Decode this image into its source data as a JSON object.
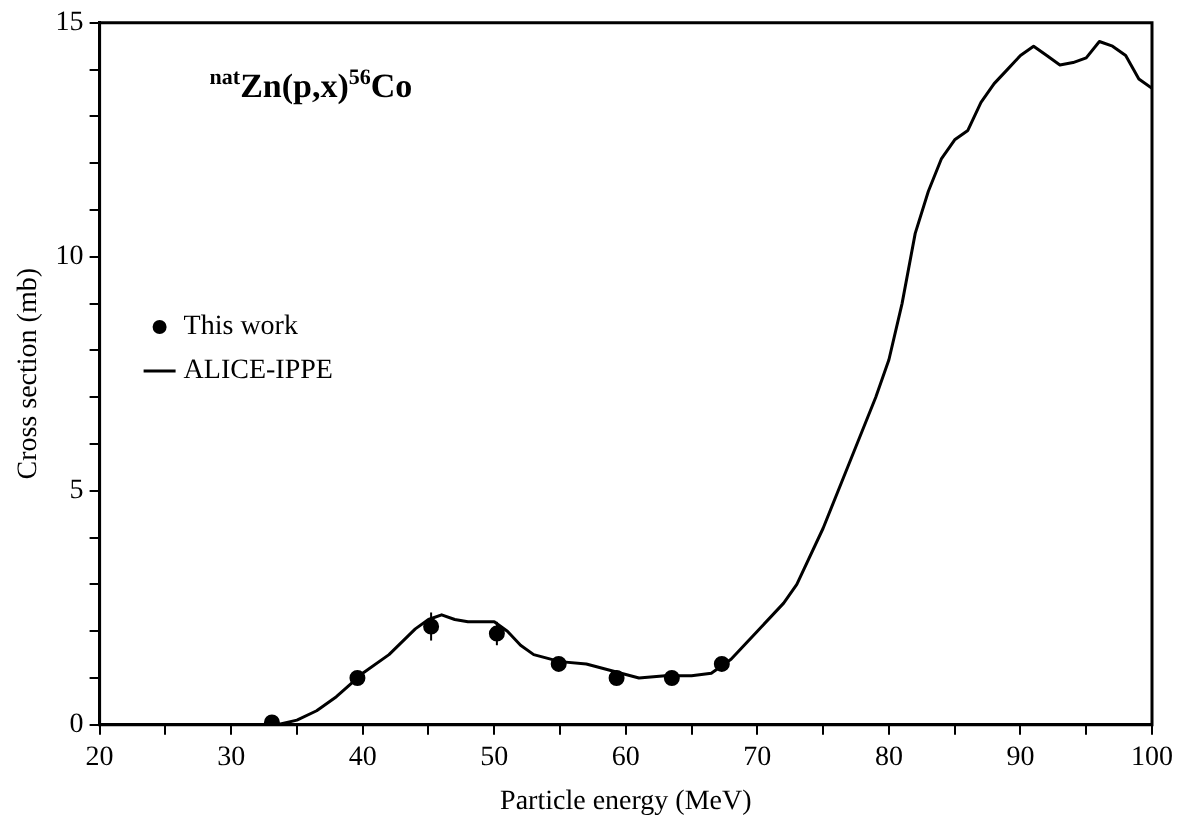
{
  "chart_data": {
    "type": "line",
    "xlabel": "Particle energy (MeV)",
    "ylabel": "Cross section (mb)",
    "annotations": [
      "$^{nat}$Zn(p,x)$^{56}$Co"
    ],
    "xlim": [
      20,
      100
    ],
    "xticks": [
      20,
      {
        "value": 25,
        "label": null
      },
      30,
      {
        "value": 35,
        "label": null
      },
      40,
      {
        "value": 45,
        "label": null
      },
      50,
      {
        "value": 55,
        "label": null
      },
      60,
      {
        "value": 65,
        "label": null
      },
      70,
      {
        "value": 75,
        "label": null
      },
      80,
      {
        "value": 85,
        "label": null
      },
      90,
      {
        "value": 95,
        "label": null
      },
      100
    ],
    "ylim": [
      0,
      15
    ],
    "yticks": [
      0,
      {
        "value": 1,
        "label": null
      },
      {
        "value": 2,
        "label": null
      },
      {
        "value": 3,
        "label": null
      },
      {
        "value": 4,
        "label": null
      },
      5,
      {
        "value": 6,
        "label": null
      },
      {
        "value": 7,
        "label": null
      },
      {
        "value": 8,
        "label": null
      },
      {
        "value": 9,
        "label": null
      },
      10,
      {
        "value": 11,
        "label": null
      },
      {
        "value": 12,
        "label": null
      },
      {
        "value": 13,
        "label": null
      },
      {
        "value": 14,
        "label": null
      },
      15
    ],
    "grid": false,
    "legend": "left",
    "series": [
      {
        "name": "This work",
        "type": "scatter",
        "color": "#000000",
        "marker": "circle",
        "x": [
          33.1,
          39.6,
          45.2,
          50.2,
          54.9,
          59.3,
          63.5,
          67.3
        ],
        "values": [
          0.05,
          1.0,
          2.1,
          1.95,
          1.3,
          1.0,
          1.0,
          1.3
        ],
        "errors": [
          null,
          0.1,
          0.3,
          0.25,
          0.1,
          0.1,
          0.1,
          0.1
        ]
      },
      {
        "name": "ALICE-IPPE",
        "color": "#000000",
        "marker": "none",
        "line_style": "solid",
        "x": [
          33.5,
          35,
          36.5,
          38,
          40,
          42,
          44,
          45,
          46,
          47,
          48,
          50,
          51,
          52,
          53,
          55,
          57,
          59,
          61,
          63,
          65,
          66.5,
          68,
          70,
          72,
          73,
          75,
          77,
          79,
          80,
          81,
          82,
          83,
          84,
          85,
          86,
          87,
          88,
          89,
          90,
          91,
          92,
          93,
          94,
          95,
          96,
          97,
          98,
          99,
          100
        ],
        "values": [
          0,
          0.1,
          0.3,
          0.6,
          1.1,
          1.5,
          2.05,
          2.25,
          2.35,
          2.25,
          2.2,
          2.2,
          2.0,
          1.7,
          1.5,
          1.35,
          1.3,
          1.15,
          1.0,
          1.05,
          1.05,
          1.1,
          1.4,
          2.0,
          2.6,
          3.0,
          4.2,
          5.6,
          7.0,
          7.8,
          9.0,
          10.5,
          11.4,
          12.1,
          12.5,
          12.7,
          13.3,
          13.7,
          14.0,
          14.3,
          14.5,
          14.3,
          14.1,
          14.15,
          14.25,
          14.6,
          14.5,
          14.3,
          13.8,
          13.6
        ]
      }
    ]
  }
}
